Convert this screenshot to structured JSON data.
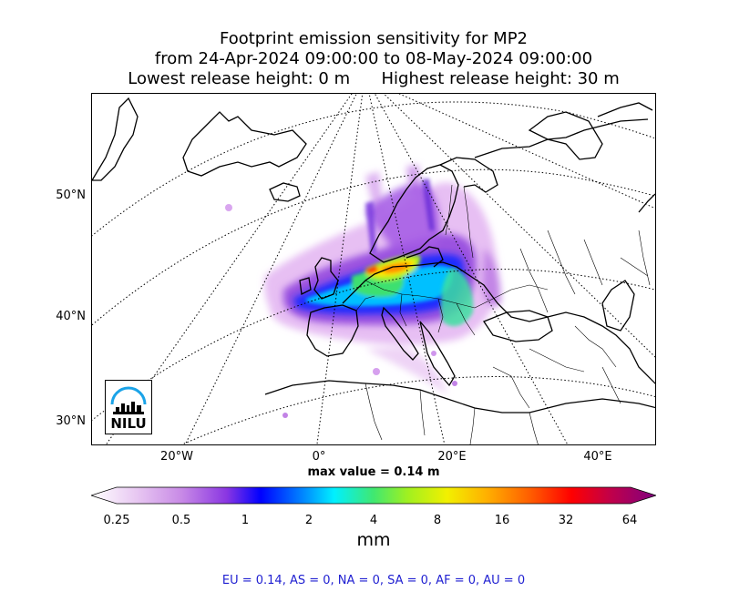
{
  "title": {
    "line1": "Footprint emission sensitivity for MP2",
    "line2": "from 24-Apr-2024 09:00:00 to 08-May-2024 09:00:00",
    "line3_left": "Lowest release height: 0 m",
    "line3_right": "Highest release height: 30 m"
  },
  "map": {
    "lat_labels": [
      "50°N",
      "40°N",
      "30°N"
    ],
    "lon_labels": [
      "20°W",
      "0°",
      "20°E",
      "40°E"
    ],
    "max_value_text": "max value = 0.14 m",
    "logo_text": "NILU",
    "logo_icon": "nilu-city-skyline-logo",
    "coastline_color": "#000000",
    "graticule_style": "dotted"
  },
  "colorbar": {
    "unit": "mm",
    "ticks": [
      "0.25",
      "0.5",
      "1",
      "2",
      "4",
      "8",
      "16",
      "32",
      "64"
    ],
    "colors": [
      "#ffffff",
      "#d8a8e8",
      "#8a2be2",
      "#0000ff",
      "#00bfff",
      "#00ffff",
      "#40e060",
      "#a0f020",
      "#ffff00",
      "#ffa500",
      "#ff4000",
      "#ff0000",
      "#c00040",
      "#800080"
    ]
  },
  "summary": "EU = 0.14,  AS = 0,  NA = 0,  SA = 0,  AF = 0,  AU = 0"
}
